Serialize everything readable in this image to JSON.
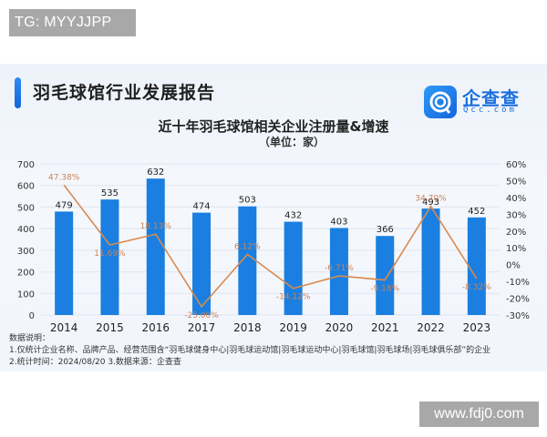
{
  "watermarks": {
    "top": "TG: MYYJJPP",
    "bottom": "www.fdj0.com"
  },
  "report": {
    "title": "羽毛球馆行业发展报告",
    "logo": {
      "brand": "企查查",
      "domain": "Qcc.com"
    }
  },
  "chart_data": {
    "type": "bar+line",
    "title": "近十年羽毛球馆相关企业注册量&增速",
    "subtitle": "（单位：家）",
    "categories": [
      "2014",
      "2015",
      "2016",
      "2017",
      "2018",
      "2019",
      "2020",
      "2021",
      "2022",
      "2023"
    ],
    "series": [
      {
        "name": "注册量",
        "type": "bar",
        "axis": "left",
        "color": "#1a7fe0",
        "values": [
          479,
          535,
          632,
          474,
          503,
          432,
          403,
          366,
          493,
          452
        ]
      },
      {
        "name": "增速",
        "type": "line",
        "axis": "right",
        "color": "#d98a4e",
        "values": [
          47.38,
          11.69,
          18.13,
          -25.0,
          6.12,
          -14.12,
          -6.71,
          -9.18,
          34.7,
          -8.32
        ],
        "labels": [
          "47.38%",
          "11.69%",
          "18.13%",
          "-25.00%",
          "6.12%",
          "-14.12%",
          "-6.71%",
          "-9.18%",
          "34.70%",
          "-8.32%"
        ]
      }
    ],
    "left_axis": {
      "ylim": [
        0,
        700
      ],
      "ticks": [
        "0",
        "100",
        "200",
        "300",
        "400",
        "500",
        "600",
        "700"
      ]
    },
    "right_axis": {
      "ylim": [
        -30,
        60
      ],
      "ticks": [
        "-30%",
        "-20%",
        "-10%",
        "0%",
        "10%",
        "20%",
        "30%",
        "40%",
        "50%",
        "60%"
      ]
    },
    "grid": true,
    "legend": "none"
  },
  "notes": {
    "heading": "数据说明：",
    "line1": "1.仅统计企业名称、品牌产品、经营范围含“羽毛球健身中心|羽毛球运动馆|羽毛球运动中心|羽毛球馆|羽毛球场|羽毛球俱乐部”的企业",
    "line2": "2.统计时间：2024/08/20    3.数据来源：企查查"
  }
}
